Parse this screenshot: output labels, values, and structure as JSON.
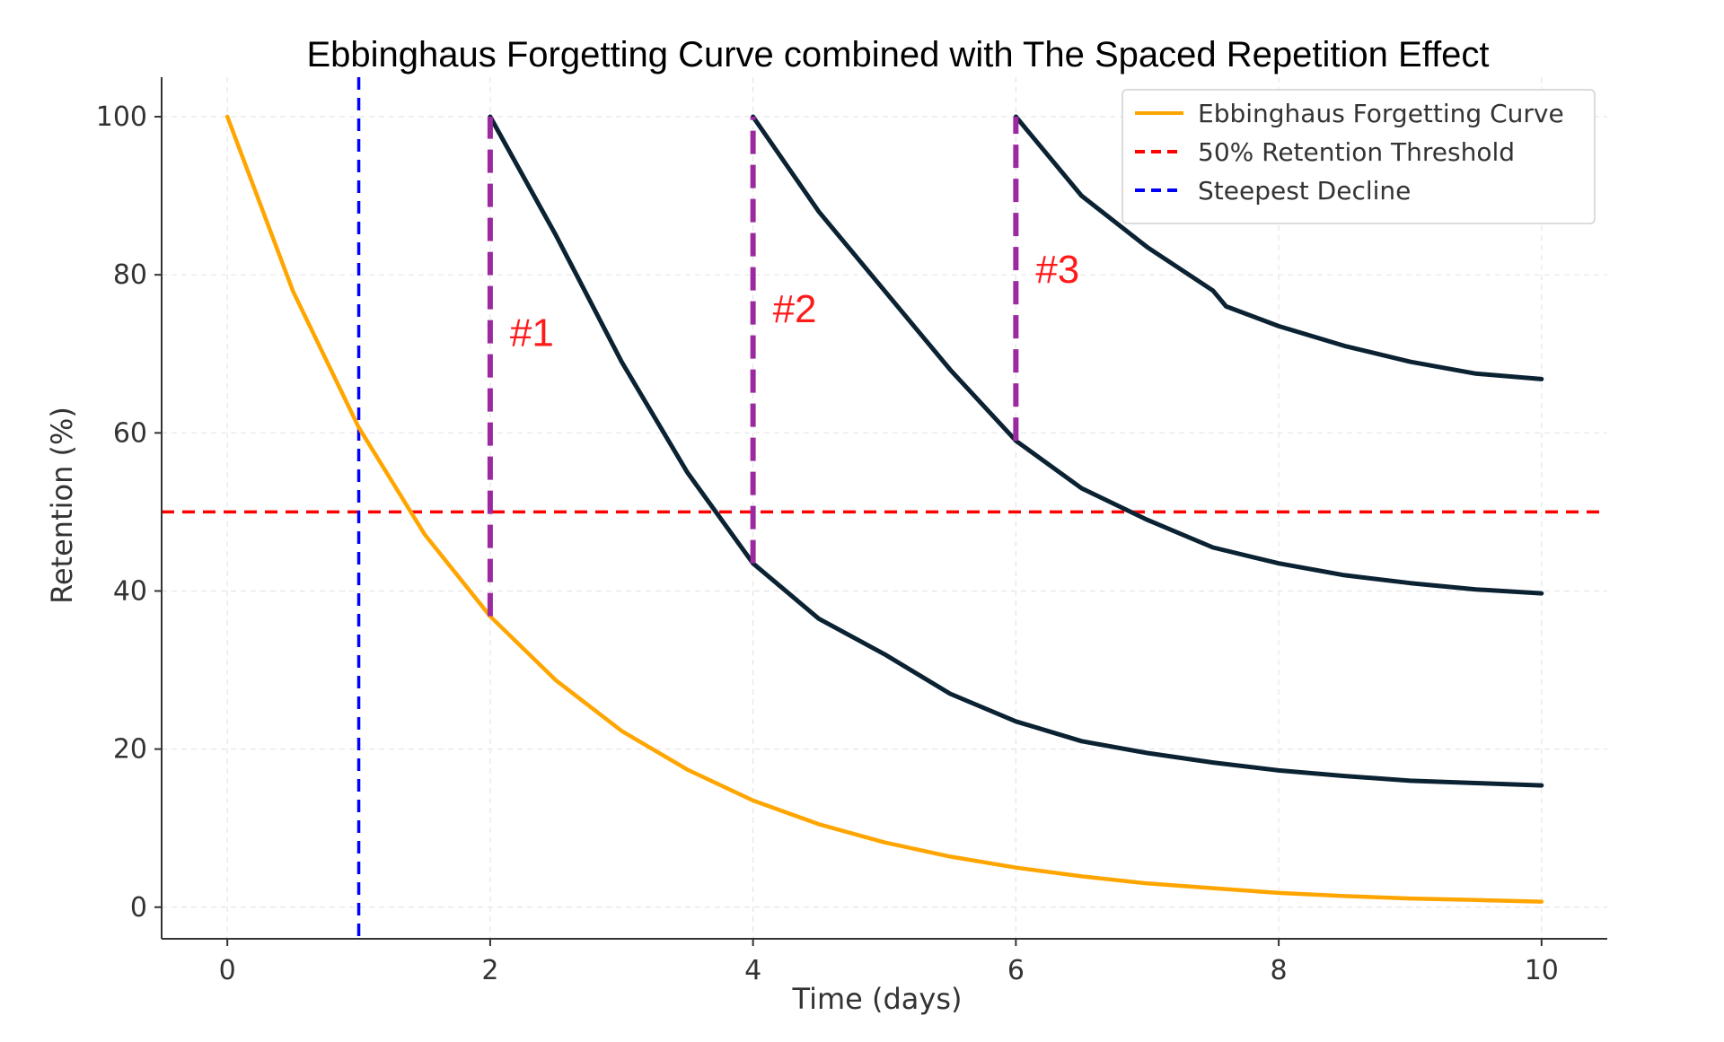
{
  "chart_data": {
    "type": "line",
    "title": "Ebbinghaus Forgetting Curve combined with The Spaced Repetition Effect",
    "xlabel": "Time (days)",
    "ylabel": "Retention (%)",
    "xlim": [
      -0.5,
      10.5
    ],
    "ylim": [
      -4,
      105
    ],
    "xticks": [
      0,
      2,
      4,
      6,
      8,
      10
    ],
    "yticks": [
      0,
      20,
      40,
      60,
      80,
      100
    ],
    "grid": true,
    "legend_position": "top-right",
    "legend": [
      {
        "label": "Ebbinghaus Forgetting Curve",
        "style": "solid",
        "color": "#ffa500"
      },
      {
        "label": "50% Retention Threshold",
        "style": "dashed",
        "color": "#ff0000"
      },
      {
        "label": "Steepest Decline",
        "style": "dashed",
        "color": "#0000ff"
      }
    ],
    "series": [
      {
        "name": "Ebbinghaus Forgetting Curve",
        "color": "#ffa500",
        "style": "solid",
        "x": [
          0,
          0.5,
          1,
          1.5,
          2,
          2.5,
          3,
          3.5,
          4,
          4.5,
          5,
          5.5,
          6,
          6.5,
          7,
          7.5,
          8,
          8.5,
          9,
          9.5,
          10
        ],
        "y": [
          100,
          77.9,
          60.7,
          47.2,
          36.8,
          28.7,
          22.3,
          17.4,
          13.5,
          10.5,
          8.2,
          6.4,
          5.0,
          3.9,
          3.0,
          2.4,
          1.8,
          1.4,
          1.1,
          0.9,
          0.7
        ]
      },
      {
        "color": "#0b2233",
        "style": "solid",
        "x": [
          2,
          2.5,
          3,
          3.5,
          4,
          4.5,
          5,
          5.5,
          6,
          6.5,
          7,
          7.5,
          8,
          8.5,
          9,
          9.5,
          10
        ],
        "y": [
          100,
          85,
          69,
          55,
          43.5,
          36.5,
          32,
          27,
          23.5,
          21,
          19.5,
          18.3,
          17.3,
          16.6,
          16,
          15.7,
          15.4
        ]
      },
      {
        "color": "#0b2233",
        "style": "solid",
        "x": [
          4,
          4.5,
          5,
          5.5,
          6,
          6.5,
          7,
          7.5,
          8,
          8.5,
          9,
          9.5,
          10
        ],
        "y": [
          100,
          88,
          78,
          68,
          59,
          53,
          49,
          45.5,
          43.5,
          42,
          41,
          40.2,
          39.7
        ]
      },
      {
        "color": "#0b2233",
        "style": "solid",
        "x": [
          6,
          6.5,
          7,
          7.5,
          7.6,
          8,
          8.5,
          9,
          9.5,
          10
        ],
        "y": [
          100,
          90,
          83.5,
          78,
          76,
          73.5,
          71,
          69,
          67.5,
          66.8
        ]
      }
    ],
    "reference_lines": [
      {
        "orientation": "horizontal",
        "value": 50,
        "color": "#ff0000",
        "style": "dashed"
      },
      {
        "orientation": "vertical",
        "value": 1,
        "color": "#0000ff",
        "style": "dashed"
      }
    ],
    "repetition_markers": [
      {
        "x": 2,
        "y_from": 36.8,
        "y_to": 100,
        "color": "#9b2aa0",
        "style": "dashed",
        "label": "#1",
        "label_x": 2.15,
        "label_y": 71
      },
      {
        "x": 4,
        "y_from": 43.5,
        "y_to": 100,
        "color": "#9b2aa0",
        "style": "dashed",
        "label": "#2",
        "label_x": 4.15,
        "label_y": 74
      },
      {
        "x": 6,
        "y_from": 59,
        "y_to": 100,
        "color": "#9b2aa0",
        "style": "dashed",
        "label": "#3",
        "label_x": 6.15,
        "label_y": 79
      }
    ]
  }
}
